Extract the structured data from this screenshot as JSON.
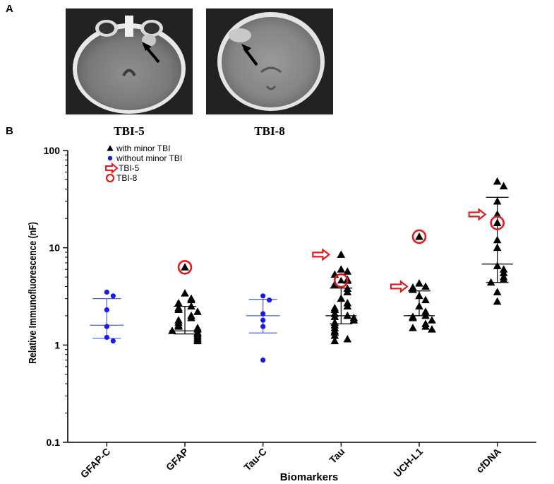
{
  "panels": {
    "a_letter": "A",
    "b_letter": "B"
  },
  "scans": [
    {
      "caption": "TBI-5",
      "annotation": "arrow pointing to lesion"
    },
    {
      "caption": "TBI-8",
      "annotation": "arrow pointing to lesion"
    }
  ],
  "chart_data": {
    "type": "scatter",
    "title": "",
    "xlabel": "Biomarkers",
    "ylabel": "Relative Immunofluorescence (nF)",
    "yscale": "log",
    "ylim": [
      0.1,
      100
    ],
    "yticks": [
      "0.1",
      "1",
      "10",
      "100"
    ],
    "categories": [
      "GFAP-C",
      "GFAP",
      "Tau-C",
      "Tau",
      "UCH-L1",
      "cfDNA"
    ],
    "legend": {
      "placement": "top-left",
      "entries": [
        {
          "label": "with minor TBI",
          "marker": "black-triangle"
        },
        {
          "label": "without minor TBI",
          "marker": "blue-dot"
        },
        {
          "label": "TBI-5",
          "marker": "red-arrow"
        },
        {
          "label": "TBI-8",
          "marker": "red-circle"
        }
      ]
    },
    "colors": {
      "with": "#000000",
      "without": "#1a1aee",
      "highlight": "#e31a1c",
      "control_bars": "#4a60e0",
      "tbi_bars": "#000000"
    },
    "series": [
      {
        "category": "GFAP-C",
        "group": "without minor TBI",
        "values": [
          3.5,
          3.2,
          2.3,
          1.55,
          1.2,
          1.1
        ],
        "median": 1.6,
        "upper": 3.0,
        "lower": 1.17
      },
      {
        "category": "GFAP",
        "group": "with minor TBI",
        "values": [
          6.3,
          3.4,
          3.0,
          2.9,
          2.7,
          2.5,
          2.4,
          2.3,
          2.2,
          2.0,
          1.9,
          1.8,
          1.7,
          1.6,
          1.55,
          1.5,
          1.45,
          1.4,
          1.35,
          1.3,
          1.25,
          1.2,
          1.15,
          1.1
        ],
        "median": 1.4,
        "upper": 2.5,
        "lower": 1.3
      },
      {
        "category": "Tau-C",
        "group": "without minor TBI",
        "values": [
          3.2,
          2.9,
          2.1,
          1.8,
          1.55,
          0.7
        ],
        "median": 2.0,
        "upper": 2.95,
        "lower": 1.33
      },
      {
        "category": "Tau",
        "group": "with minor TBI",
        "values": [
          8.5,
          6.0,
          5.7,
          5.3,
          4.7,
          4.6,
          4.2,
          3.8,
          3.5,
          3.0,
          2.7,
          2.5,
          2.4,
          2.3,
          2.1,
          2.0,
          1.95,
          1.9,
          1.8,
          1.7,
          1.6,
          1.5,
          1.4,
          1.35,
          1.25,
          1.15,
          1.1
        ],
        "median": 2.0,
        "upper": 3.85,
        "lower": 1.65
      },
      {
        "category": "UCH-L1",
        "group": "with minor TBI",
        "values": [
          13.0,
          4.3,
          4.0,
          3.9,
          3.7,
          3.2,
          2.9,
          2.5,
          2.2,
          2.0,
          1.95,
          1.9,
          1.8,
          1.65,
          1.55,
          1.5,
          1.45
        ],
        "median": 2.0,
        "upper": 3.6,
        "lower": 2.0
      },
      {
        "category": "cfDNA",
        "group": "with minor TBI",
        "values": [
          48,
          43,
          30,
          22,
          18,
          12,
          10,
          6.5,
          6.0,
          5.5,
          5.0,
          4.7,
          4.4,
          3.5,
          2.8
        ],
        "median": 6.8,
        "upper": 33.0,
        "lower": 4.4
      }
    ],
    "highlights": [
      {
        "category": "Tau",
        "label": "TBI-5",
        "value": 8.5,
        "marker": "red-arrow"
      },
      {
        "category": "UCH-L1",
        "label": "TBI-5",
        "value": 4.0,
        "marker": "red-arrow"
      },
      {
        "category": "cfDNA",
        "label": "TBI-5",
        "value": 22,
        "marker": "red-arrow"
      },
      {
        "category": "GFAP",
        "label": "TBI-8",
        "value": 6.3,
        "marker": "red-circle"
      },
      {
        "category": "Tau",
        "label": "TBI-8",
        "value": 4.6,
        "marker": "red-circle"
      },
      {
        "category": "UCH-L1",
        "label": "TBI-8",
        "value": 13.0,
        "marker": "red-circle"
      },
      {
        "category": "cfDNA",
        "label": "TBI-8",
        "value": 18.0,
        "marker": "red-circle"
      }
    ]
  }
}
